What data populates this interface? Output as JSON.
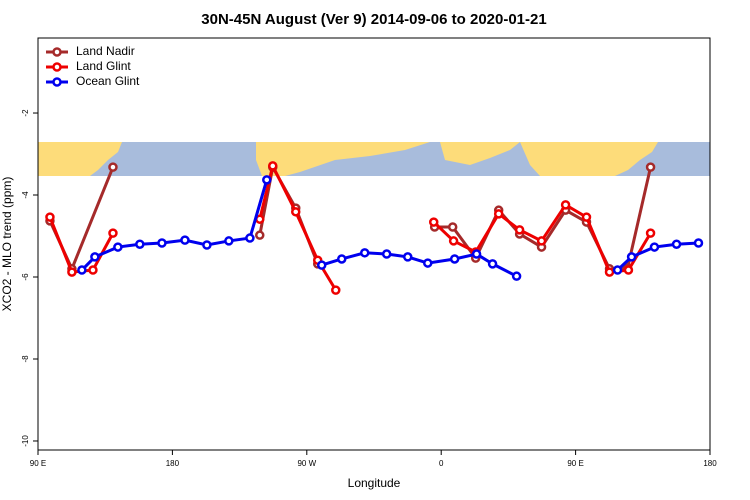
{
  "chart_data": {
    "type": "line",
    "title": "30N-45N August (Ver 9)   2014-09-06 to 2020-01-21",
    "x_label": "Longitude",
    "y_label": "XCO2 - MLO trend (ppm)",
    "xlim": [
      90,
      540
    ],
    "xticks": [
      {
        "value": 90,
        "label": "90 E"
      },
      {
        "value": 180,
        "label": "180"
      },
      {
        "value": 270,
        "label": "90 W"
      },
      {
        "value": 360,
        "label": "0"
      },
      {
        "value": 450,
        "label": "90 E"
      },
      {
        "value": 540,
        "label": "180"
      }
    ],
    "ylim": [
      -10.22,
      -0.17
    ],
    "yticks": [
      -10,
      -8,
      -6,
      -4,
      -2
    ],
    "legend": "top-left",
    "series": [
      {
        "name": "Land Nadir",
        "color": "#a52a2a",
        "x": [
          98.0,
          112.7,
          140.2,
          null,
          238.5,
          247.2,
          262.6,
          277.3,
          null,
          355.6,
          367.7,
          383.1,
          398.5,
          412.5,
          427.2,
          443.3,
          457.3,
          472.7,
          484.8,
          500.2
        ],
        "values": [
          -4.63,
          -5.8,
          -3.32,
          null,
          -4.98,
          -3.32,
          -4.32,
          -5.68,
          null,
          -4.78,
          -4.78,
          -5.54,
          -4.37,
          -4.95,
          -5.27,
          -4.37,
          -4.66,
          -5.8,
          -5.78,
          -3.32
        ]
      },
      {
        "name": "Land Glint",
        "color": "#ee0000",
        "x": [
          98.0,
          112.7,
          126.8,
          140.2,
          null,
          238.5,
          247.2,
          262.6,
          277.3,
          289.4,
          null,
          355.0,
          368.3,
          383.1,
          398.5,
          412.5,
          427.2,
          443.3,
          457.3,
          472.7,
          485.4,
          500.2
        ],
        "values": [
          -4.54,
          -5.88,
          -5.83,
          -4.93,
          null,
          -4.59,
          -3.29,
          -4.41,
          -5.59,
          -6.32,
          null,
          -4.66,
          -5.12,
          -5.39,
          -4.46,
          -4.85,
          -5.12,
          -4.24,
          -4.54,
          -5.88,
          -5.83,
          -4.93
        ]
      },
      {
        "name": "Ocean Glint",
        "color": "#0000ee",
        "x": [
          119.4,
          128.1,
          143.5,
          158.2,
          173.0,
          188.4,
          203.1,
          217.8,
          231.9,
          243.2,
          null,
          280.0,
          293.4,
          308.8,
          323.5,
          337.6,
          351.0,
          369.0,
          383.7,
          394.4,
          410.5,
          null,
          478.1,
          487.5,
          502.8,
          517.6,
          532.3
        ],
        "values": [
          -5.83,
          -5.51,
          -5.27,
          -5.2,
          -5.17,
          -5.1,
          -5.22,
          -5.12,
          -5.05,
          -3.63,
          null,
          -5.71,
          -5.56,
          -5.41,
          -5.44,
          -5.51,
          -5.66,
          -5.56,
          -5.44,
          -5.68,
          -5.98,
          null,
          -5.83,
          -5.51,
          -5.27,
          -5.2,
          -5.17
        ]
      }
    ]
  }
}
